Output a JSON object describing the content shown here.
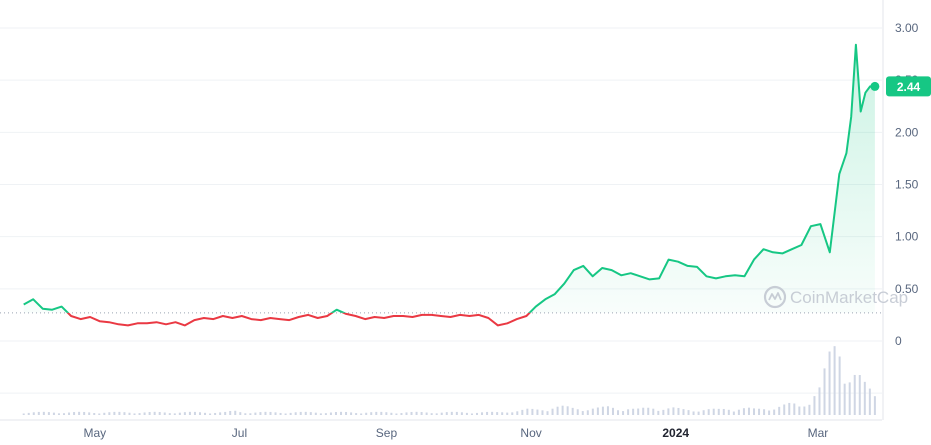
{
  "chart_data": {
    "type": "line",
    "title": "",
    "xlabel": "",
    "ylabel": "",
    "ylim": [
      -0.6,
      3.2
    ],
    "x_ticks": [
      "May",
      "Jul",
      "Sep",
      "Nov",
      "2024",
      "Mar"
    ],
    "y_ticks": [
      "3.00",
      "2.50",
      "2.00",
      "1.50",
      "1.00",
      "0.50",
      "0"
    ],
    "baseline": 0.27,
    "current_price_label": "2.44",
    "current_price": 2.44,
    "series": [
      {
        "x": [
          "2023-04-01",
          "2023-04-05",
          "2023-04-09",
          "2023-04-13",
          "2023-04-17",
          "2023-04-21",
          "2023-04-25",
          "2023-04-29",
          "2023-05-03",
          "2023-05-07",
          "2023-05-11",
          "2023-05-15",
          "2023-05-19",
          "2023-05-23",
          "2023-05-27",
          "2023-05-31",
          "2023-06-04",
          "2023-06-08",
          "2023-06-12",
          "2023-06-16",
          "2023-06-20",
          "2023-06-24",
          "2023-06-28",
          "2023-07-02",
          "2023-07-06",
          "2023-07-10",
          "2023-07-14",
          "2023-07-18",
          "2023-07-22",
          "2023-07-26",
          "2023-07-30",
          "2023-08-03",
          "2023-08-07",
          "2023-08-11",
          "2023-08-15",
          "2023-08-19",
          "2023-08-23",
          "2023-08-27",
          "2023-08-31",
          "2023-09-04",
          "2023-09-08",
          "2023-09-12",
          "2023-09-16",
          "2023-09-20",
          "2023-09-24",
          "2023-09-28",
          "2023-10-02",
          "2023-10-06",
          "2023-10-10",
          "2023-10-14",
          "2023-10-18",
          "2023-10-22",
          "2023-10-26",
          "2023-10-30",
          "2023-11-03",
          "2023-11-07",
          "2023-11-11",
          "2023-11-15",
          "2023-11-19",
          "2023-11-23",
          "2023-11-27",
          "2023-12-01",
          "2023-12-05",
          "2023-12-09",
          "2023-12-13",
          "2023-12-17",
          "2023-12-21",
          "2023-12-25",
          "2023-12-29",
          "2024-01-02",
          "2024-01-06",
          "2024-01-10",
          "2024-01-14",
          "2024-01-18",
          "2024-01-22",
          "2024-01-26",
          "2024-01-30",
          "2024-02-03",
          "2024-02-07",
          "2024-02-11",
          "2024-02-15",
          "2024-02-19",
          "2024-02-23",
          "2024-02-27",
          "2024-03-02",
          "2024-03-06",
          "2024-03-10",
          "2024-03-13",
          "2024-03-15",
          "2024-03-17",
          "2024-03-19",
          "2024-03-21",
          "2024-03-23",
          "2024-03-25"
        ],
        "values": [
          0.35,
          0.4,
          0.31,
          0.3,
          0.33,
          0.24,
          0.21,
          0.23,
          0.19,
          0.18,
          0.16,
          0.15,
          0.17,
          0.17,
          0.18,
          0.16,
          0.18,
          0.15,
          0.2,
          0.22,
          0.21,
          0.24,
          0.22,
          0.24,
          0.21,
          0.2,
          0.22,
          0.21,
          0.2,
          0.23,
          0.25,
          0.22,
          0.24,
          0.3,
          0.26,
          0.24,
          0.21,
          0.23,
          0.22,
          0.24,
          0.24,
          0.23,
          0.25,
          0.25,
          0.24,
          0.23,
          0.25,
          0.24,
          0.25,
          0.22,
          0.15,
          0.17,
          0.21,
          0.24,
          0.33,
          0.4,
          0.45,
          0.55,
          0.68,
          0.72,
          0.62,
          0.7,
          0.68,
          0.63,
          0.65,
          0.62,
          0.59,
          0.6,
          0.78,
          0.76,
          0.72,
          0.71,
          0.62,
          0.6,
          0.62,
          0.63,
          0.62,
          0.78,
          0.88,
          0.85,
          0.84,
          0.88,
          0.92,
          1.1,
          1.12,
          0.85,
          1.6,
          1.8,
          2.15,
          2.84,
          2.2,
          2.38,
          2.44,
          2.44
        ]
      }
    ],
    "volume": [
      0.02,
      0.02,
      0.02,
      0.02,
      0.02,
      0.02,
      0.02,
      0.02,
      0.02,
      0.02,
      0.02,
      0.02,
      0.02,
      0.02,
      0.02,
      0.02,
      0.02,
      0.02,
      0.02,
      0.02,
      0.02,
      0.02,
      0.02,
      0.03,
      0.02,
      0.02,
      0.02,
      0.02,
      0.02,
      0.02,
      0.02,
      0.02,
      0.02,
      0.02,
      0.02,
      0.02,
      0.02,
      0.02,
      0.02,
      0.02,
      0.02,
      0.02,
      0.02,
      0.02,
      0.02,
      0.02,
      0.02,
      0.02,
      0.02,
      0.02,
      0.02,
      0.02,
      0.02,
      0.03,
      0.03,
      0.04,
      0.04,
      0.05,
      0.06,
      0.06,
      0.05,
      0.05,
      0.05,
      0.05,
      0.06,
      0.05,
      0.05,
      0.04,
      0.05,
      0.06,
      0.05,
      0.05,
      0.04,
      0.04,
      0.04,
      0.04,
      0.04,
      0.05,
      0.05,
      0.05,
      0.04,
      0.05,
      0.06,
      0.07,
      0.08,
      0.06,
      0.15,
      0.2,
      0.4,
      0.55,
      0.35,
      0.3,
      0.2,
      0.15
    ],
    "colors": {
      "up": "#16c784",
      "down": "#ea3943",
      "grid": "#eff2f5",
      "axis_text": "#58667e",
      "volume": "#cfd6e4",
      "watermark": "#c3c8d2"
    },
    "watermark": "CoinMarketCap",
    "grid": true,
    "legend": "none"
  }
}
